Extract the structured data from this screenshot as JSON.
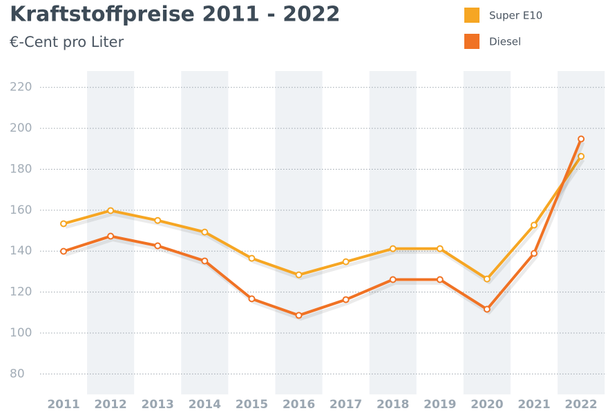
{
  "chart_data": {
    "type": "line",
    "title": "Kraftstoffpreise 2011 - 2022",
    "subtitle": "€-Cent pro Liter",
    "categories": [
      "2011",
      "2012",
      "2013",
      "2014",
      "2015",
      "2016",
      "2017",
      "2018",
      "2019",
      "2020",
      "2021",
      "2022"
    ],
    "series": [
      {
        "name": "Super E10",
        "color": "#f6a623",
        "values": [
          153.4,
          159.8,
          155.0,
          149.3,
          136.5,
          128.4,
          134.8,
          141.2,
          141.2,
          126.4,
          152.7,
          186.3
        ]
      },
      {
        "name": "Diesel",
        "color": "#f07224",
        "values": [
          139.9,
          147.3,
          142.6,
          135.2,
          116.7,
          108.6,
          116.3,
          126.1,
          126.1,
          111.6,
          138.9,
          194.8
        ]
      }
    ],
    "ylim": [
      70,
      228
    ],
    "yticks": [
      80,
      100,
      120,
      140,
      160,
      180,
      200,
      220
    ],
    "grid": true,
    "legend": "top-right"
  }
}
